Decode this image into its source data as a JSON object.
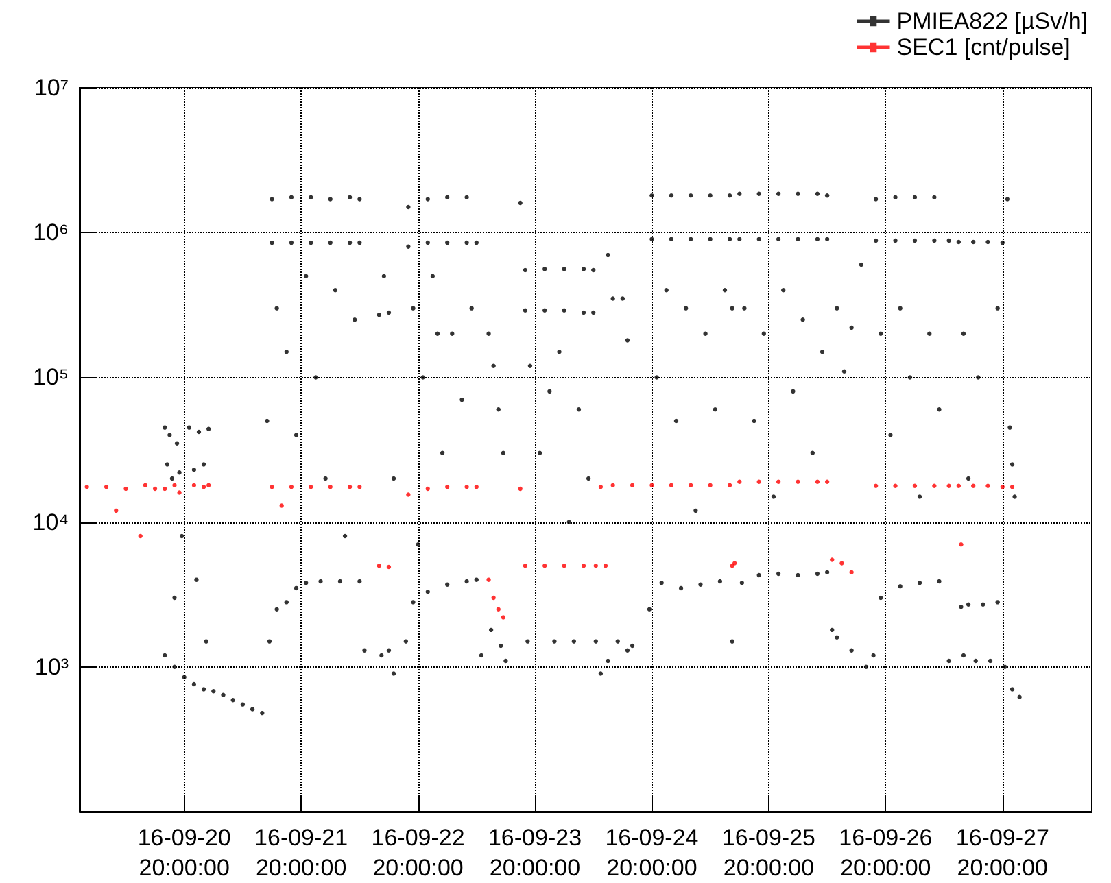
{
  "chart_data": {
    "type": "scatter",
    "log": "y",
    "grid": true,
    "legend": "top right",
    "marker": "circle",
    "xlim": [
      "--09-19T22:30",
      "--09-28T14:20"
    ],
    "xticks": [
      {
        "value": "--09-20T20:00",
        "label": "16-09-20\n20:00:00"
      },
      {
        "value": "--09-21T20:00",
        "label": "16-09-21\n20:00:00"
      },
      {
        "value": "--09-22T20:00",
        "label": "16-09-22\n20:00:00"
      },
      {
        "value": "--09-23T20:00",
        "label": "16-09-23\n20:00:00"
      },
      {
        "value": "--09-24T20:00",
        "label": "16-09-24\n20:00:00"
      },
      {
        "value": "--09-25T20:00",
        "label": "16-09-25\n20:00:00"
      },
      {
        "value": "--09-26T20:00",
        "label": "16-09-26\n20:00:00"
      },
      {
        "value": "--09-27T20:00",
        "label": "16-09-27\n20:00:00"
      }
    ],
    "ylim": [
      100,
      10000000
    ],
    "yticks": [
      {
        "value": 1000,
        "label": "10³"
      },
      {
        "value": 10000,
        "label": "10⁴"
      },
      {
        "value": 100000,
        "label": "10⁵"
      },
      {
        "value": 1000000,
        "label": "10⁶"
      },
      {
        "value": 10000000,
        "label": "10⁷"
      }
    ],
    "series": [
      {
        "name": "PMIEA822 [µSv/h]",
        "color": "#000000",
        "x": [
          "--09-20T16:00",
          "--09-20T16:30",
          "--09-20T17:00",
          "--09-20T17:30",
          "--09-20T18:00",
          "--09-20T18:30",
          "--09-20T19:00",
          "--09-20T19:30",
          "--09-20T16:00",
          "--09-20T18:00",
          "--09-20T20:00",
          "--09-20T22:00",
          "--09-21T00:00",
          "--09-21T02:00",
          "--09-21T04:00",
          "--09-21T06:00",
          "--09-21T08:00",
          "--09-21T10:00",
          "--09-21T12:00",
          "--09-20T21:00",
          "--09-20T22:00",
          "--09-20T23:00",
          "--09-21T00:00",
          "--09-21T01:00",
          "--09-20T22:30",
          "--09-21T00:30",
          "--09-21T13:00",
          "--09-21T14:00",
          "--09-21T18:00",
          "--09-21T22:00",
          "--09-22T02:00",
          "--09-22T06:00",
          "--09-22T08:00",
          "--09-21T14:00",
          "--09-21T18:00",
          "--09-21T22:00",
          "--09-22T02:00",
          "--09-22T06:00",
          "--09-22T08:00",
          "--09-21T15:00",
          "--09-21T17:00",
          "--09-21T19:00",
          "--09-21T21:00",
          "--09-21T23:00",
          "--09-22T01:00",
          "--09-22T03:00",
          "--09-22T05:00",
          "--09-22T07:00",
          "--09-21T13:30",
          "--09-21T15:00",
          "--09-21T17:00",
          "--09-21T19:00",
          "--09-21T21:00",
          "--09-22T00:00",
          "--09-22T04:00",
          "--09-22T08:00",
          "--09-22T09:00",
          "--09-22T12:00",
          "--09-22T14:00",
          "--09-22T13:00",
          "--09-22T15:00",
          "--09-22T12:30",
          "--09-22T14:00",
          "--09-22T15:00",
          "--09-22T18:00",
          "--09-22T22:00",
          "--09-23T02:00",
          "--09-23T06:00",
          "--09-22T18:00",
          "--09-22T22:00",
          "--09-23T02:00",
          "--09-23T06:00",
          "--09-23T08:00",
          "--09-22T19:00",
          "--09-22T21:00",
          "--09-22T23:00",
          "--09-23T01:00",
          "--09-23T03:00",
          "--09-23T05:00",
          "--09-23T07:00",
          "--09-22T20:00",
          "--09-23T00:00",
          "--09-22T17:30",
          "--09-22T19:00",
          "--09-22T22:00",
          "--09-23T02:00",
          "--09-23T06:00",
          "--09-23T08:00",
          "--09-23T09:00",
          "--09-23T10:30",
          "--09-23T11:30",
          "--09-23T12:30",
          "--09-23T13:30",
          "--09-23T11:00",
          "--09-23T13:00",
          "--09-23T14:00",
          "--09-23T17:00",
          "--09-23T18:00",
          "--09-23T22:00",
          "--09-24T02:00",
          "--09-24T06:00",
          "--09-24T08:00",
          "--09-23T18:00",
          "--09-23T22:00",
          "--09-24T02:00",
          "--09-24T06:00",
          "--09-24T08:00",
          "--09-23T19:00",
          "--09-23T21:00",
          "--09-23T23:00",
          "--09-24T01:00",
          "--09-24T03:00",
          "--09-24T05:00",
          "--09-24T07:00",
          "--09-23T18:30",
          "--09-24T00:00",
          "--09-24T04:00",
          "--09-24T08:30",
          "--09-24T09:30",
          "--09-24T11:00",
          "--09-24T12:00",
          "--09-24T14:00",
          "--09-24T15:00",
          "--09-24T11:00",
          "--09-24T13:00",
          "--09-24T15:00",
          "--09-24T16:00",
          "--09-24T20:00",
          "--09-25T00:00",
          "--09-25T04:00",
          "--09-25T08:00",
          "--09-25T12:00",
          "--09-24T20:00",
          "--09-25T00:00",
          "--09-25T04:00",
          "--09-25T08:00",
          "--09-25T12:00",
          "--09-24T21:00",
          "--09-24T23:00",
          "--09-25T01:00",
          "--09-25T03:00",
          "--09-25T05:00",
          "--09-25T07:00",
          "--09-25T09:00",
          "--09-25T11:00",
          "--09-25T12:30",
          "--09-24T19:30",
          "--09-24T22:00",
          "--09-25T02:00",
          "--09-25T06:00",
          "--09-25T10:00",
          "--09-25T12:30",
          "--09-25T14:00",
          "--09-25T18:00",
          "--09-25T22:00",
          "--09-26T02:00",
          "--09-26T06:00",
          "--09-26T08:00",
          "--09-25T14:00",
          "--09-25T18:00",
          "--09-25T22:00",
          "--09-26T02:00",
          "--09-26T06:00",
          "--09-26T08:00",
          "--09-25T15:00",
          "--09-25T17:00",
          "--09-25T19:00",
          "--09-25T21:00",
          "--09-25T23:00",
          "--09-26T01:00",
          "--09-26T03:00",
          "--09-26T05:00",
          "--09-26T07:00",
          "--09-25T14:30",
          "--09-25T18:00",
          "--09-25T22:00",
          "--09-26T02:00",
          "--09-26T06:00",
          "--09-26T08:00",
          "--09-26T09:00",
          "--09-26T10:00",
          "--09-26T11:30",
          "--09-26T13:00",
          "--09-26T15:00",
          "--09-26T10:00",
          "--09-26T13:00",
          "--09-26T16:00",
          "--09-26T18:00",
          "--09-26T22:00",
          "--09-27T02:00",
          "--09-27T06:00",
          "--09-26T18:00",
          "--09-26T22:00",
          "--09-27T02:00",
          "--09-27T06:00",
          "--09-27T09:00",
          "--09-26T19:00",
          "--09-26T21:00",
          "--09-26T23:00",
          "--09-27T01:00",
          "--09-27T03:00",
          "--09-27T05:00",
          "--09-27T07:00",
          "--09-26T17:30",
          "--09-26T19:00",
          "--09-26T23:00",
          "--09-27T03:00",
          "--09-27T07:00",
          "--09-27T09:00",
          "--09-27T11:00",
          "--09-27T14:00",
          "--09-27T17:00",
          "--09-27T20:00",
          "--09-27T12:00",
          "--09-27T15:00",
          "--09-27T19:00",
          "--09-27T13:00",
          "--09-27T11:30",
          "--09-27T12:00",
          "--09-27T13:00",
          "--09-27T14:30",
          "--09-27T16:00",
          "--09-27T17:30",
          "--09-27T19:00",
          "--09-27T20:30",
          "--09-27T21:00",
          "--09-27T21:30",
          "--09-27T22:00",
          "--09-27T22:30",
          "--09-27T22:00",
          "--09-27T23:30"
        ],
        "values": [
          45000,
          25000,
          40000,
          20000,
          3000,
          35000,
          22000,
          8000,
          1200,
          1000,
          850,
          760,
          700,
          680,
          640,
          590,
          550,
          510,
          480,
          45000,
          23000,
          42000,
          25000,
          44000,
          4000,
          1500,
          50000,
          1700000,
          1750000,
          1750000,
          1700000,
          1750000,
          1700000,
          850000,
          850000,
          850000,
          850000,
          850000,
          850000,
          300000,
          150000,
          40000,
          500000,
          100000,
          20000,
          400000,
          8000,
          250000,
          1500,
          2500,
          2800,
          3500,
          3800,
          3900,
          3900,
          3900,
          1300,
          270000,
          280000,
          500000,
          20000,
          1200,
          1300,
          900,
          1500000,
          1700000,
          1750000,
          1750000,
          800000,
          850000,
          850000,
          850000,
          850000,
          300000,
          100000,
          500000,
          30000,
          200000,
          70000,
          300000,
          7000,
          200000,
          1500,
          2800,
          3300,
          3700,
          3900,
          4000,
          1200,
          200000,
          120000,
          60000,
          30000,
          1800,
          1400,
          1100,
          1600000,
          550000,
          560000,
          560000,
          560000,
          550000,
          290000,
          290000,
          290000,
          280000,
          280000,
          120000,
          30000,
          80000,
          150000,
          10000,
          60000,
          20000,
          1500,
          1500,
          1500,
          1500,
          900,
          700000,
          350000,
          350000,
          180000,
          1100,
          1500,
          1300,
          1400,
          1800000,
          1800000,
          1800000,
          1800000,
          1800000,
          900000,
          900000,
          900000,
          900000,
          900000,
          100000,
          400000,
          50000,
          300000,
          12000,
          200000,
          60000,
          400000,
          300000,
          2500,
          3800,
          3500,
          3700,
          3900,
          1500,
          1850000,
          1850000,
          1850000,
          1850000,
          1850000,
          1800000,
          900000,
          900000,
          900000,
          900000,
          900000,
          900000,
          300000,
          50000,
          200000,
          15000,
          400000,
          80000,
          250000,
          30000,
          150000,
          3800,
          4300,
          4400,
          4300,
          4400,
          4500,
          1800,
          300000,
          110000,
          220000,
          600000,
          1600,
          1300,
          1000,
          1700000,
          1750000,
          1750000,
          1750000,
          880000,
          880000,
          880000,
          880000,
          880000,
          200000,
          40000,
          300000,
          100000,
          15000,
          200000,
          60000,
          1200,
          3000,
          3600,
          3800,
          3900,
          1100,
          860000,
          860000,
          860000,
          850000,
          200000,
          100000,
          300000,
          20000,
          2600,
          1200,
          2700,
          1100,
          2700,
          1100,
          2800,
          1000,
          1700000,
          45000,
          25000,
          15000,
          700,
          620
        ]
      },
      {
        "name": "SEC1 [cnt/pulse]",
        "color": "#ff0000",
        "x": [
          "--09-20T00:00",
          "--09-20T04:00",
          "--09-20T08:00",
          "--09-20T12:00",
          "--09-20T14:00",
          "--09-20T06:00",
          "--09-20T11:00",
          "--09-20T16:00",
          "--09-20T18:00",
          "--09-20T19:00",
          "--09-20T22:00",
          "--09-21T00:00",
          "--09-21T01:00",
          "--09-21T14:00",
          "--09-21T18:00",
          "--09-21T22:00",
          "--09-22T02:00",
          "--09-22T06:00",
          "--09-22T08:00",
          "--09-21T16:00",
          "--09-22T12:00",
          "--09-22T14:00",
          "--09-22T18:00",
          "--09-22T22:00",
          "--09-23T02:00",
          "--09-23T06:00",
          "--09-23T08:00",
          "--09-23T10:30",
          "--09-23T11:30",
          "--09-23T12:30",
          "--09-23T13:30",
          "--09-23T17:00",
          "--09-23T18:00",
          "--09-23T22:00",
          "--09-24T02:00",
          "--09-24T06:00",
          "--09-24T08:30",
          "--09-24T09:30",
          "--09-24T10:30",
          "--09-24T12:00",
          "--09-24T16:00",
          "--09-24T20:00",
          "--09-25T00:00",
          "--09-25T04:00",
          "--09-25T08:00",
          "--09-25T12:00",
          "--09-25T12:30",
          "--09-25T13:00",
          "--09-25T14:00",
          "--09-25T18:00",
          "--09-25T22:00",
          "--09-26T02:00",
          "--09-26T06:00",
          "--09-26T08:00",
          "--09-26T09:00",
          "--09-26T11:00",
          "--09-26T13:00",
          "--09-26T18:00",
          "--09-26T22:00",
          "--09-27T02:00",
          "--09-27T06:00",
          "--09-27T09:00",
          "--09-27T11:00",
          "--09-27T14:00",
          "--09-27T17:00",
          "--09-27T20:00",
          "--09-27T22:00",
          "--09-27T11:30"
        ],
        "values": [
          17500,
          17500,
          17000,
          18000,
          17000,
          12000,
          8000,
          17000,
          18000,
          16000,
          18000,
          17500,
          18000,
          17500,
          17500,
          17500,
          17500,
          17500,
          17500,
          13000,
          5000,
          4900,
          15500,
          17000,
          17500,
          17500,
          17500,
          4000,
          3000,
          2500,
          2200,
          17000,
          5000,
          5000,
          5000,
          5000,
          5000,
          17500,
          5000,
          18000,
          18000,
          18000,
          18000,
          18000,
          18000,
          18000,
          5000,
          5200,
          19000,
          19000,
          19000,
          19000,
          19000,
          19000,
          5500,
          5200,
          4500,
          17800,
          17800,
          17800,
          17800,
          17800,
          17800,
          17800,
          17800,
          17500,
          17500,
          7000
        ]
      }
    ]
  }
}
